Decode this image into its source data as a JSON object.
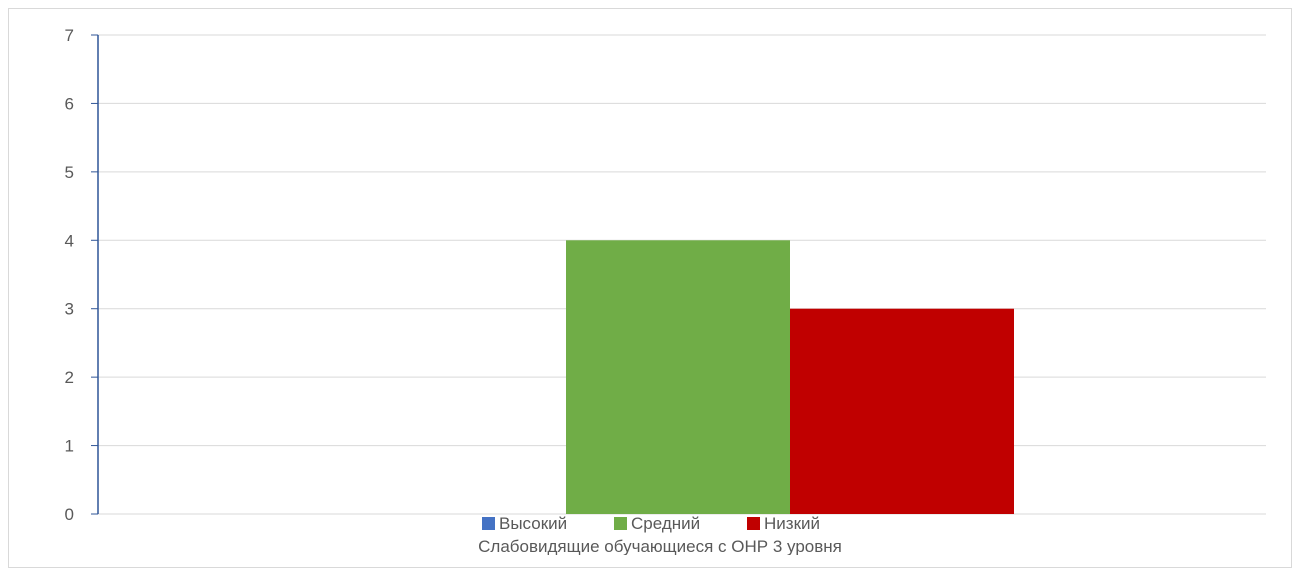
{
  "chart_data": {
    "type": "bar",
    "categories": [
      "Слабовидящие обучающиеся с ОНР 3 уровня"
    ],
    "series": [
      {
        "name": "Высокий",
        "values": [
          0
        ],
        "color": "#4472c4"
      },
      {
        "name": "Средний",
        "values": [
          4
        ],
        "color": "#70ad47"
      },
      {
        "name": "Низкий",
        "values": [
          3
        ],
        "color": "#c00000"
      }
    ],
    "ylim": [
      0,
      7
    ],
    "yticks": [
      "0",
      "1",
      "2",
      "3",
      "4",
      "5",
      "6",
      "7"
    ],
    "grid": true,
    "legend_position": "bottom",
    "colors": {
      "axis": "#2f5597",
      "gridline": "#d9d9d9",
      "text": "#595959"
    }
  }
}
